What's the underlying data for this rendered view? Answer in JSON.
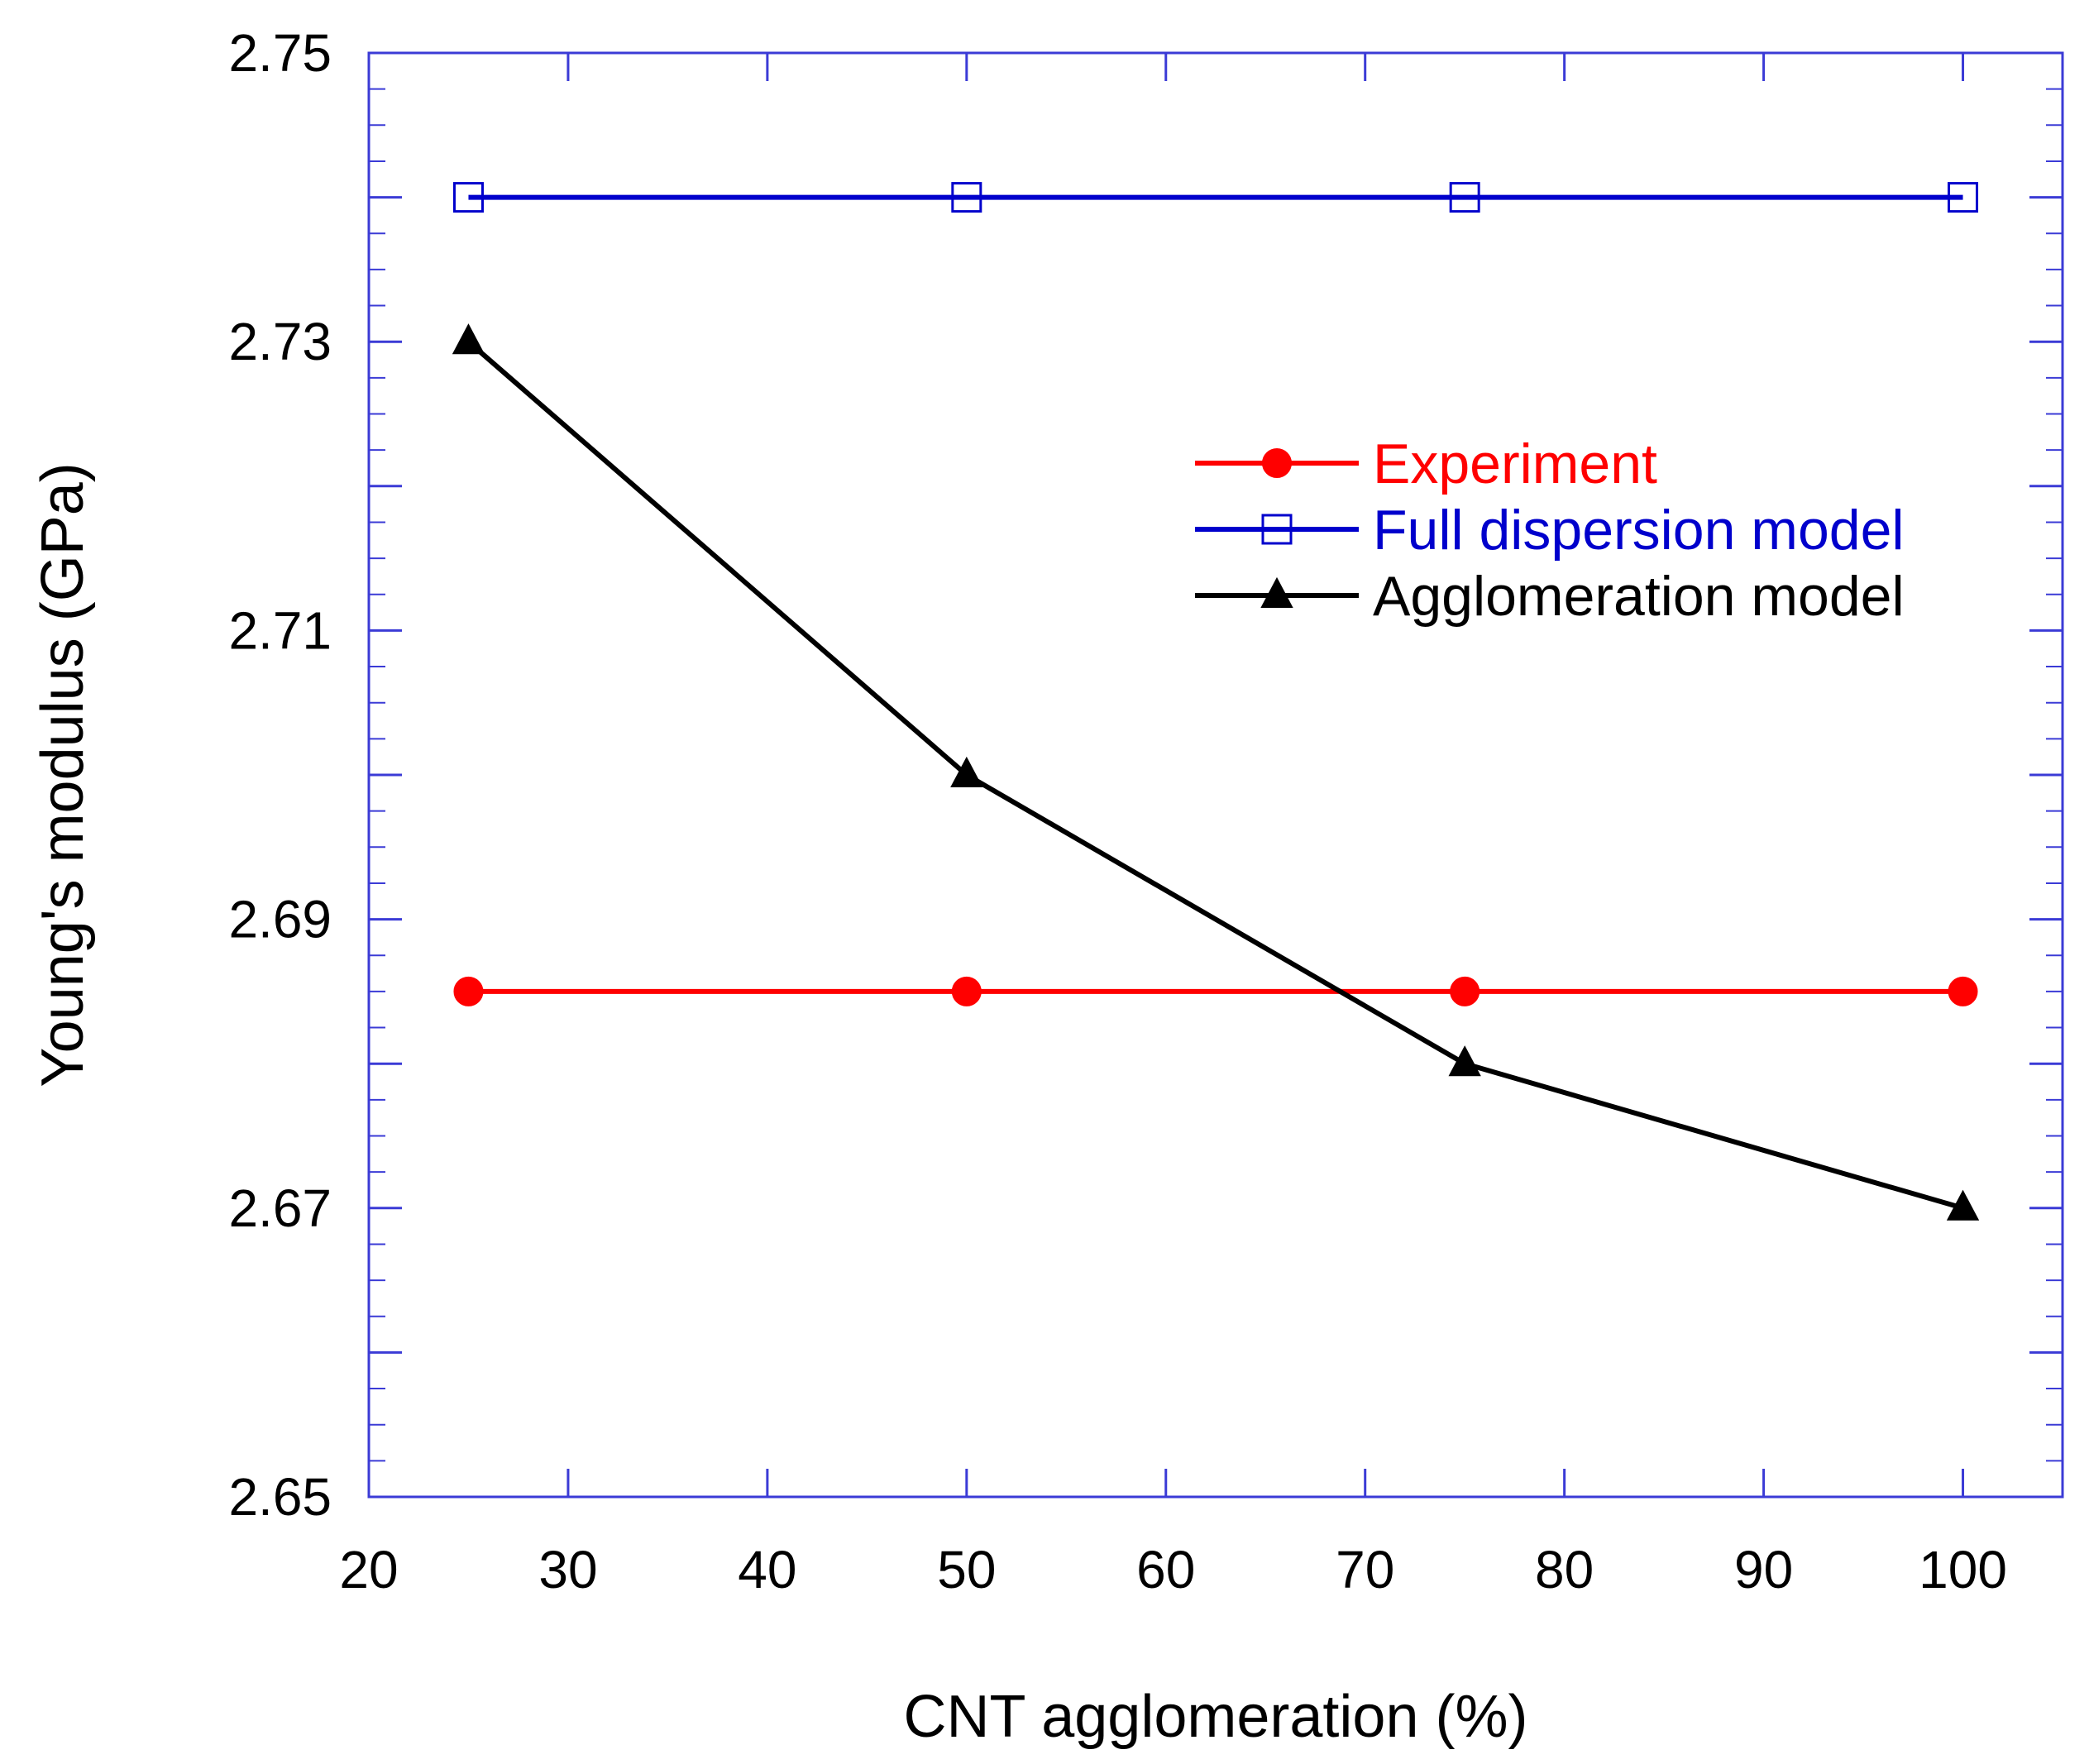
{
  "chart_data": {
    "type": "line",
    "title": "",
    "xlabel": "CNT agglomeration (%)",
    "ylabel": "Young's modulus (GPa)",
    "xlim": [
      20,
      105
    ],
    "ylim": [
      2.65,
      2.75
    ],
    "xticks": [
      20,
      30,
      40,
      50,
      60,
      70,
      80,
      90,
      100
    ],
    "xtick_labels": [
      "20",
      "30",
      "40",
      "50",
      "60",
      "70",
      "80",
      "90",
      "100"
    ],
    "yticks": [
      2.65,
      2.67,
      2.69,
      2.71,
      2.73,
      2.75
    ],
    "ytick_labels": [
      "2.65",
      "2.67",
      "2.69",
      "2.71",
      "2.73",
      "2.75"
    ],
    "grid": false,
    "legend_position": "upper-right",
    "x": [
      25,
      50,
      75,
      100
    ],
    "series": [
      {
        "name": "Experiment",
        "color": "#ff0000",
        "marker": "filled-circle",
        "values": [
          2.685,
          2.685,
          2.685,
          2.685
        ]
      },
      {
        "name": "Full dispersion model",
        "color": "#0000cc",
        "marker": "open-square",
        "values": [
          2.74,
          2.74,
          2.74,
          2.74
        ]
      },
      {
        "name": "Agglomeration model",
        "color": "#000000",
        "marker": "filled-triangle",
        "values": [
          2.73,
          2.7,
          2.68,
          2.67
        ]
      }
    ]
  }
}
